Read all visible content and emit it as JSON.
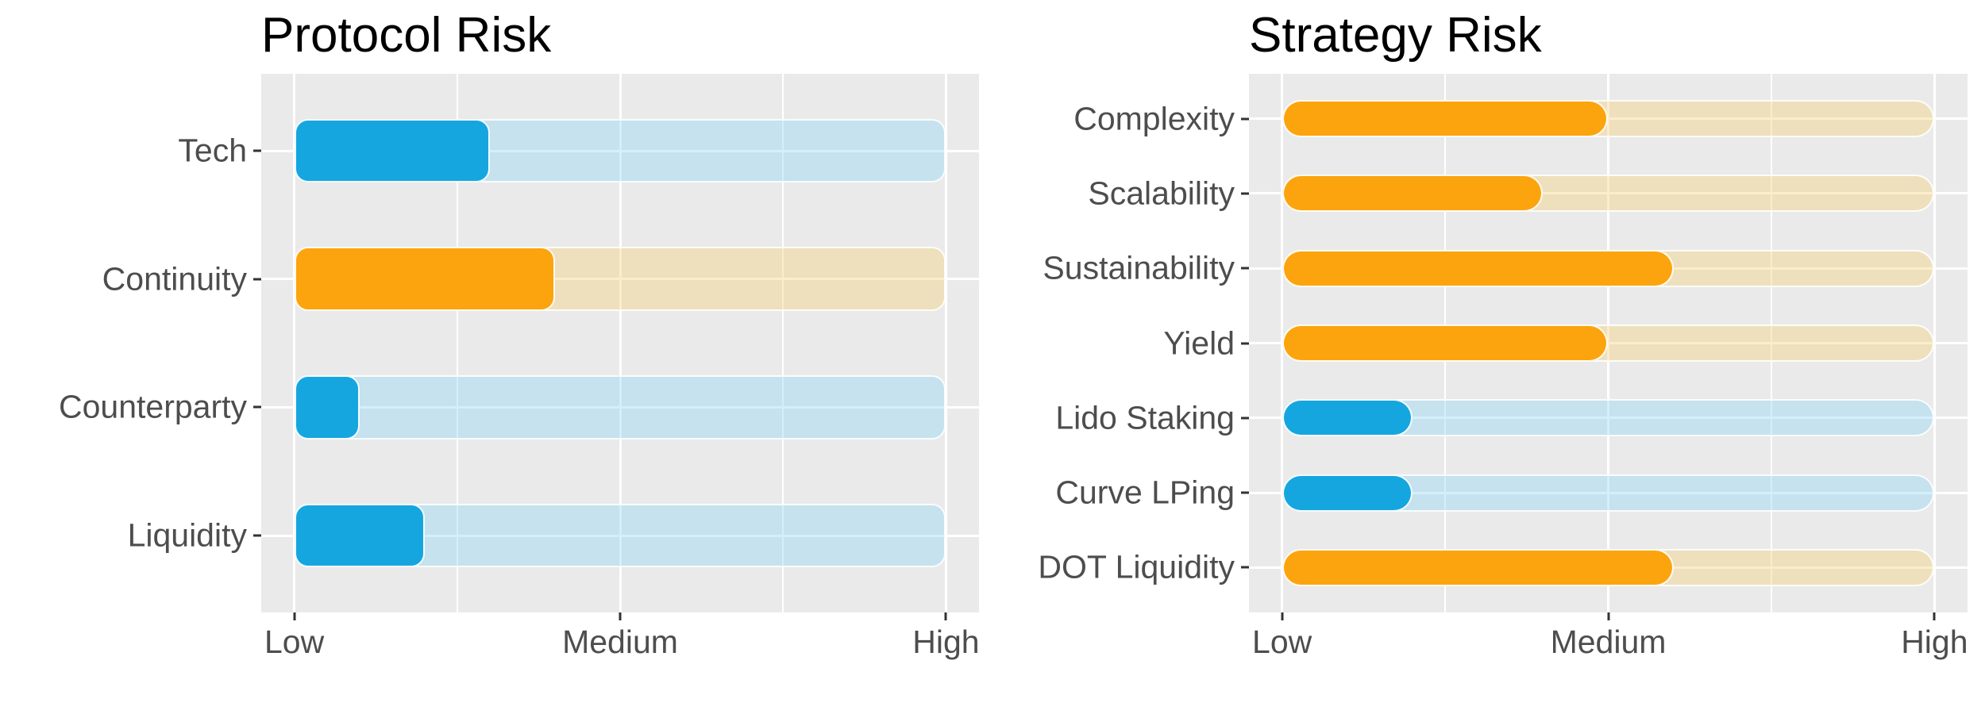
{
  "figure": {
    "background": "#FFFFFF",
    "description": "Two horizontal rounded-bar risk charts side by side"
  },
  "colors": {
    "panel_bg": "#EAEAEA",
    "grid": "#FFFFFF",
    "axis_text": "#4D4D4D",
    "tick_mark": "#333333",
    "title_text": "#000000",
    "blue": "#15A6DF",
    "orange": "#FCA40D",
    "blue_track": "rgba(142,214,244,0.40)",
    "orange_track": "rgba(246,210,120,0.40)"
  },
  "chart_data": [
    {
      "type": "bar",
      "orientation": "horizontal",
      "title": "Protocol Risk",
      "categories": [
        "Tech",
        "Continuity",
        "Counterparty",
        "Liquidity"
      ],
      "values": [
        3,
        4,
        1,
        2
      ],
      "series_colors": [
        "blue",
        "orange",
        "blue",
        "blue"
      ],
      "track_to": 10,
      "x_axis": {
        "min": 0,
        "max": 10,
        "tick_values": [
          0,
          5,
          10
        ],
        "tick_labels": [
          "Low",
          "Medium",
          "High"
        ],
        "minor_tick_values": [
          2.5,
          7.5
        ]
      },
      "xlabel": "",
      "ylabel": "",
      "grid": "on",
      "legend": false
    },
    {
      "type": "bar",
      "orientation": "horizontal",
      "title": "Strategy Risk",
      "categories": [
        "Complexity",
        "Scalability",
        "Sustainability",
        "Yield",
        "Lido Staking",
        "Curve LPing",
        "DOT Liquidity"
      ],
      "values": [
        5,
        4,
        6,
        5,
        2,
        2,
        6
      ],
      "series_colors": [
        "orange",
        "orange",
        "orange",
        "orange",
        "blue",
        "blue",
        "orange"
      ],
      "track_to": 10,
      "x_axis": {
        "min": 0,
        "max": 10,
        "tick_values": [
          0,
          5,
          10
        ],
        "tick_labels": [
          "Low",
          "Medium",
          "High"
        ],
        "minor_tick_values": [
          2.5,
          7.5
        ]
      },
      "xlabel": "",
      "ylabel": "",
      "grid": "on",
      "legend": false
    }
  ]
}
